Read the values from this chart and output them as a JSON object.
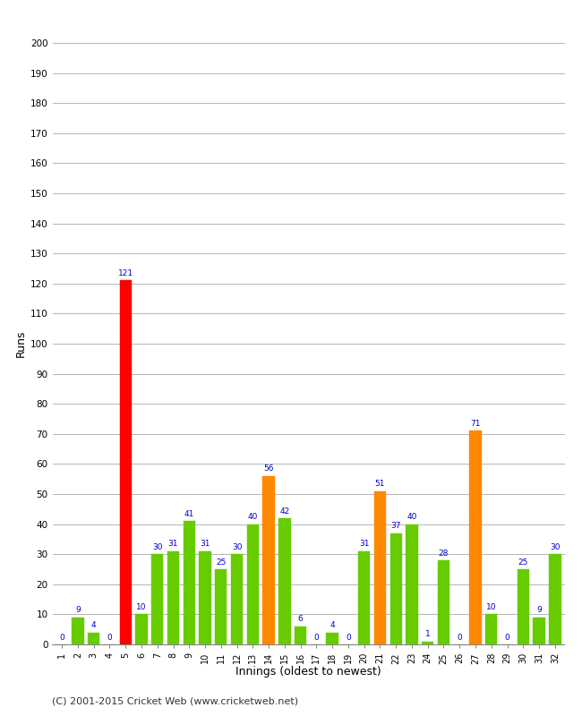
{
  "xlabel": "Innings (oldest to newest)",
  "ylabel": "Runs",
  "ylim": [
    0,
    200
  ],
  "yticks": [
    0,
    10,
    20,
    30,
    40,
    50,
    60,
    70,
    80,
    90,
    100,
    110,
    120,
    130,
    140,
    150,
    160,
    170,
    180,
    190,
    200
  ],
  "categories": [
    1,
    2,
    3,
    4,
    5,
    6,
    7,
    8,
    9,
    10,
    11,
    12,
    13,
    14,
    15,
    16,
    17,
    18,
    19,
    20,
    21,
    22,
    23,
    24,
    25,
    26,
    27,
    28,
    29,
    30,
    31,
    32
  ],
  "values": [
    0,
    9,
    4,
    0,
    121,
    10,
    30,
    31,
    41,
    31,
    25,
    30,
    40,
    56,
    42,
    6,
    0,
    4,
    0,
    31,
    51,
    37,
    40,
    1,
    28,
    0,
    71,
    10,
    0,
    25,
    9,
    30
  ],
  "colors": [
    "#66cc00",
    "#66cc00",
    "#66cc00",
    "#66cc00",
    "#ff0000",
    "#66cc00",
    "#66cc00",
    "#66cc00",
    "#66cc00",
    "#66cc00",
    "#66cc00",
    "#66cc00",
    "#66cc00",
    "#ff8800",
    "#66cc00",
    "#66cc00",
    "#66cc00",
    "#66cc00",
    "#66cc00",
    "#66cc00",
    "#ff8800",
    "#66cc00",
    "#66cc00",
    "#66cc00",
    "#66cc00",
    "#66cc00",
    "#ff8800",
    "#66cc00",
    "#66cc00",
    "#66cc00",
    "#66cc00",
    "#66cc00"
  ],
  "label_color": "#0000cc",
  "background_color": "#ffffff",
  "grid_color": "#aaaaaa",
  "footer": "(C) 2001-2015 Cricket Web (www.cricketweb.net)"
}
